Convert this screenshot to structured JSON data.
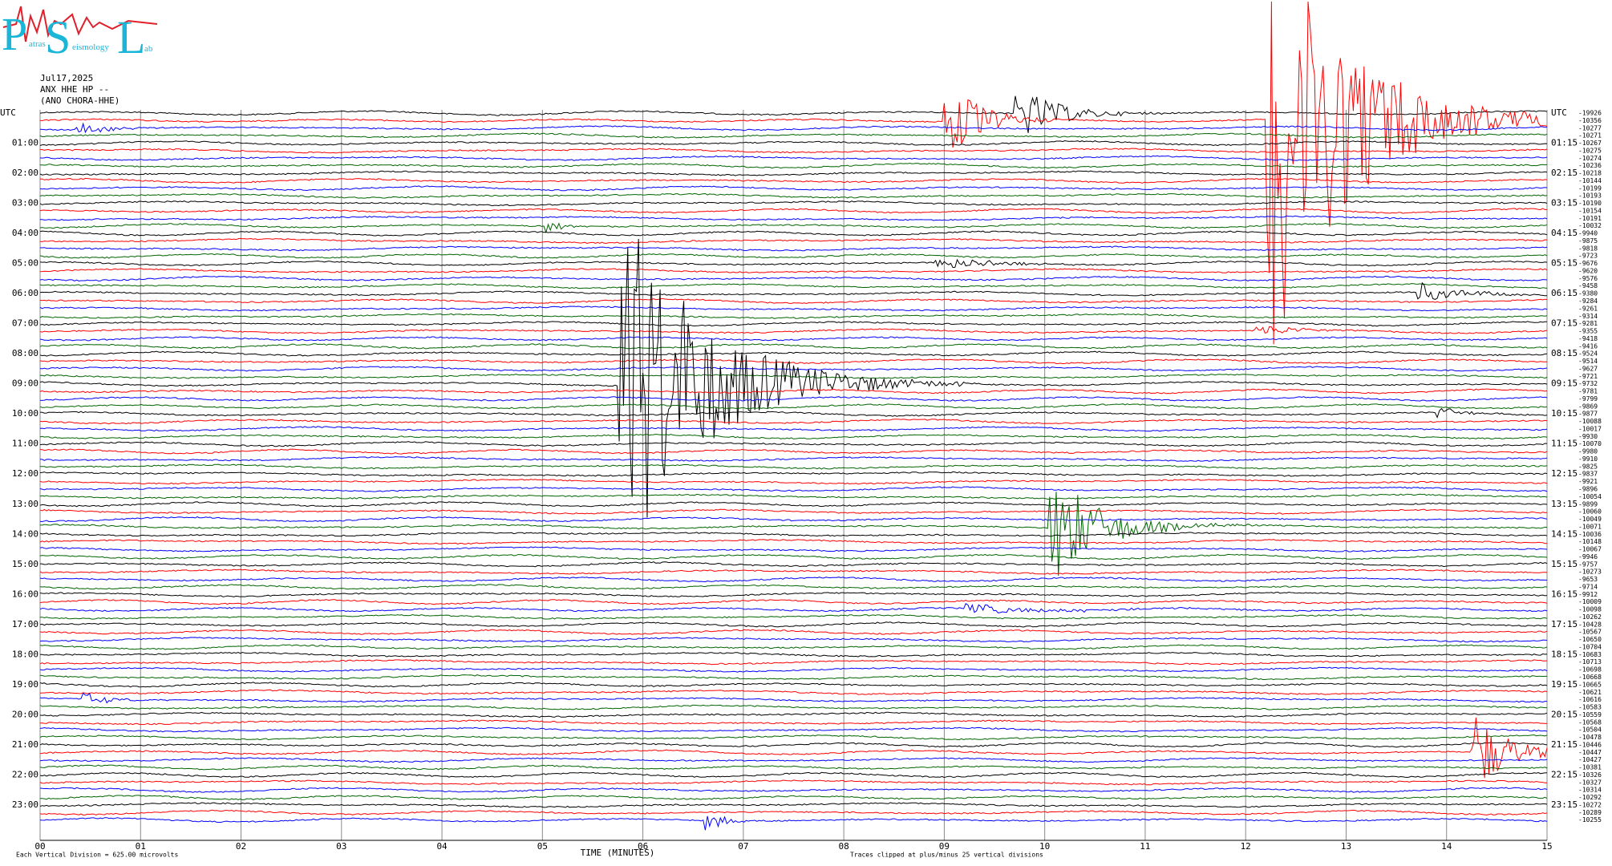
{
  "logo": {
    "letters": [
      "P",
      "S",
      "L"
    ],
    "words": [
      "atras",
      "eismology",
      "ab"
    ]
  },
  "header": {
    "date": "Jul17,2025",
    "station": "ANX HHE HP --",
    "location": "(ANO CHORA-HHE)"
  },
  "left_labels": [
    "UTC",
    "01:00",
    "02:00",
    "03:00",
    "04:00",
    "05:00",
    "06:00",
    "07:00",
    "08:00",
    "09:00",
    "10:00",
    "11:00",
    "12:00",
    "13:00",
    "14:00",
    "15:00",
    "16:00",
    "17:00",
    "18:00",
    "19:00",
    "20:00",
    "21:00",
    "22:00",
    "23:00"
  ],
  "right_labels": [
    "UTC",
    "01:15",
    "02:15",
    "03:15",
    "04:15",
    "05:15",
    "06:15",
    "07:15",
    "08:15",
    "09:15",
    "10:15",
    "11:15",
    "12:15",
    "13:15",
    "14:15",
    "15:15",
    "16:15",
    "17:15",
    "18:15",
    "19:15",
    "20:15",
    "21:15",
    "22:15",
    "23:15"
  ],
  "row_offsets": [
    "-19926",
    "-10356",
    "-10277",
    "-10271",
    "-10267",
    "-10275",
    "-10274",
    "-10236",
    "-10218",
    "-10144",
    "-10199",
    "-10193",
    "-10190",
    "-10154",
    "-10191",
    "-10032",
    "-9940",
    "-9875",
    "-9818",
    "-9723",
    "-9676",
    "-9620",
    "-9576",
    "-9458",
    "-9380",
    "-9284",
    "-9261",
    "-9314",
    "-9281",
    "-9355",
    "-9418",
    "-9416",
    "-9524",
    "-9514",
    "-9627",
    "-9721",
    "-9732",
    "-9781",
    "-9799",
    "-9869",
    "-9877",
    "-10088",
    "-10017",
    "-9930",
    "-10070",
    "-9980",
    "-9910",
    "-9825",
    "-9837",
    "-9921",
    "-9896",
    "-10054",
    "-9899",
    "-10060",
    "-10049",
    "-10071",
    "-10036",
    "-10148",
    "-10067",
    "-9946",
    "-9757",
    "-10273",
    "-9653",
    "-9714",
    "-9912",
    "-10009",
    "-10098",
    "-10262",
    "-10428",
    "-10567",
    "-10650",
    "-10704",
    "-10683",
    "-10713",
    "-10698",
    "-10668",
    "-10665",
    "-10621",
    "-10616",
    "-10583",
    "-10559",
    "-10568",
    "-10504",
    "-10478",
    "-10446",
    "-10447",
    "-10427",
    "-10381",
    "-10326",
    "-10327",
    "-10314",
    "-10292",
    "-10272",
    "-10289",
    "-10255"
  ],
  "x_axis": {
    "ticks": [
      "00",
      "01",
      "02",
      "03",
      "04",
      "05",
      "06",
      "07",
      "08",
      "09",
      "10",
      "11",
      "12",
      "13",
      "14",
      "15"
    ],
    "title": "TIME (MINUTES)"
  },
  "footer": {
    "scale": "Each Vertical Division =  625.00 microvolts",
    "clip": "Traces clipped at plus/minus 25 vertical divisions"
  }
}
